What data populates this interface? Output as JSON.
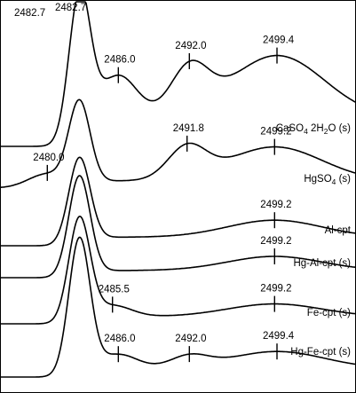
{
  "chart_data": {
    "type": "line",
    "x_unit": "eV",
    "grid": false,
    "legend": "none",
    "series": [
      {
        "name": "CaSO4 2H2O (s)",
        "label_parts": [
          "CaSO",
          "4",
          " 2H",
          "2",
          "O (s)"
        ],
        "peaks": [
          {
            "x": 2482.7,
            "label": "2482.7",
            "y": 1.0
          },
          {
            "x": 2486.0,
            "label": "2486.0",
            "y": 0.3
          },
          {
            "x": 2492.0,
            "label": "2492.0",
            "y": 0.32
          },
          {
            "x": 2499.4,
            "label": "2499.4",
            "y": 0.44
          }
        ],
        "tail_level": 0.2
      },
      {
        "name": "HgSO4 (s)",
        "label_parts": [
          "HgSO",
          "4",
          " (s)"
        ],
        "peaks": [
          {
            "x": 2480.0,
            "label": "2480.0",
            "y": 0.1
          },
          {
            "x": 2482.7,
            "label": "",
            "y": 0.58
          },
          {
            "x": 2491.8,
            "label": "2491.8",
            "y": 0.22
          },
          {
            "x": 2499.2,
            "label": "2499.2",
            "y": 0.24
          }
        ],
        "tail_level": 0.05
      },
      {
        "name": "Al-cpt",
        "label_parts": [
          "Al-cpt"
        ],
        "peaks": [
          {
            "x": 2482.7,
            "label": "",
            "y": 0.6
          },
          {
            "x": 2499.2,
            "label": "2499.2",
            "y": 0.12
          }
        ],
        "tail_level": 0.06
      },
      {
        "name": "Hg-Al-cpt (s)",
        "label_parts": [
          "Hg-Al-cpt (s)"
        ],
        "peaks": [
          {
            "x": 2482.7,
            "label": "",
            "y": 0.7
          },
          {
            "x": 2499.2,
            "label": "2499.2",
            "y": 0.1
          }
        ],
        "tail_level": 0.05
      },
      {
        "name": "Fe-cpt (s)",
        "label_parts": [
          "Fe-cpt (s)"
        ],
        "peaks": [
          {
            "x": 2482.7,
            "label": "",
            "y": 0.72
          },
          {
            "x": 2485.5,
            "label": "2485.5",
            "y": 0.08
          },
          {
            "x": 2499.2,
            "label": "2499.2",
            "y": 0.09
          }
        ],
        "tail_level": 0.05
      },
      {
        "name": "Hg-Fe-cpt (s)",
        "label_parts": [
          "Hg-Fe-cpt (s)"
        ],
        "peaks": [
          {
            "x": 2482.7,
            "label": "",
            "y": 0.95
          },
          {
            "x": 2486.0,
            "label": "2486.0",
            "y": 0.1
          },
          {
            "x": 2492.0,
            "label": "2492.0",
            "y": 0.08
          },
          {
            "x": 2499.4,
            "label": "2499.4",
            "y": 0.12
          }
        ],
        "tail_level": 0.06
      }
    ]
  }
}
